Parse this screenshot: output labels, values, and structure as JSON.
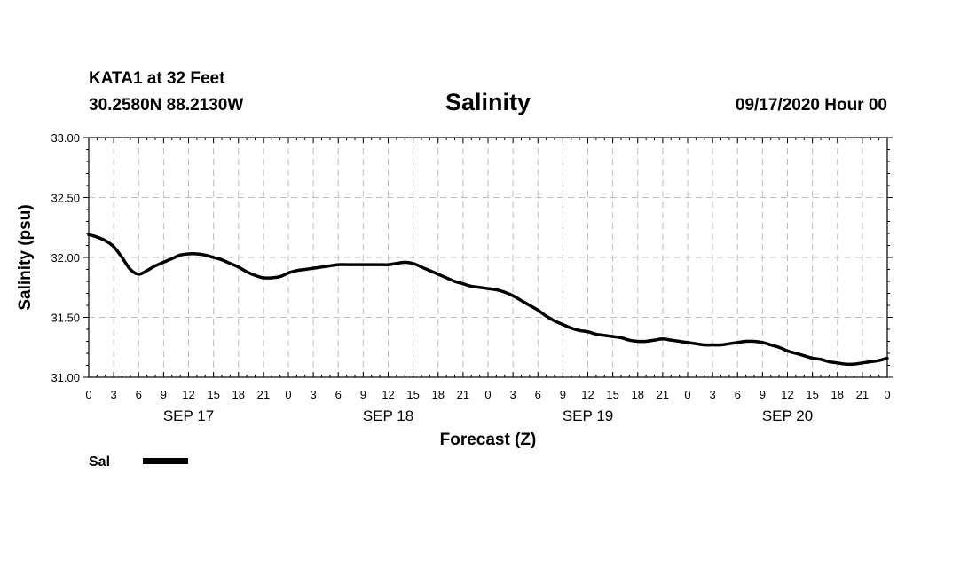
{
  "chart_data": {
    "type": "line",
    "title": "Salinity",
    "station": "KATA1 at 32 Feet",
    "location": "30.2580N 88.2130W",
    "run": "09/17/2020 Hour 00",
    "xlabel": "Forecast (Z)",
    "ylabel": "Salinity (psu)",
    "ylim": [
      31.0,
      33.0
    ],
    "xlim": [
      0,
      96
    ],
    "y_ticks": [
      "31.00",
      "31.50",
      "32.00",
      "32.50",
      "33.00"
    ],
    "x_ticks": [
      "0",
      "3",
      "6",
      "9",
      "12",
      "15",
      "18",
      "21",
      "0",
      "3",
      "6",
      "9",
      "12",
      "15",
      "18",
      "21",
      "0",
      "3",
      "6",
      "9",
      "12",
      "15",
      "18",
      "21",
      "0",
      "3",
      "6",
      "9",
      "12",
      "15",
      "18",
      "21",
      "0"
    ],
    "date_labels": [
      {
        "label": "SEP 17",
        "hour": 12
      },
      {
        "label": "SEP 18",
        "hour": 36
      },
      {
        "label": "SEP 19",
        "hour": 60
      },
      {
        "label": "SEP 20",
        "hour": 84
      }
    ],
    "grid": true,
    "legend": "bottom-left",
    "series": [
      {
        "name": "Sal",
        "x": [
          0,
          1,
          2,
          3,
          4,
          5,
          6,
          7,
          8,
          9,
          10,
          11,
          12,
          13,
          14,
          15,
          16,
          17,
          18,
          19,
          20,
          21,
          22,
          23,
          24,
          25,
          26,
          27,
          28,
          29,
          30,
          31,
          32,
          33,
          34,
          35,
          36,
          37,
          38,
          39,
          40,
          41,
          42,
          43,
          44,
          45,
          46,
          47,
          48,
          49,
          50,
          51,
          52,
          53,
          54,
          55,
          56,
          57,
          58,
          59,
          60,
          61,
          62,
          63,
          64,
          65,
          66,
          67,
          68,
          69,
          70,
          71,
          72,
          73,
          74,
          75,
          76,
          77,
          78,
          79,
          80,
          81,
          82,
          83,
          84,
          85,
          86,
          87,
          88,
          89,
          90,
          91,
          92,
          93,
          94,
          95,
          96
        ],
        "values": [
          32.19,
          32.17,
          32.14,
          32.09,
          32.0,
          31.9,
          31.86,
          31.89,
          31.93,
          31.96,
          31.99,
          32.02,
          32.03,
          32.03,
          32.02,
          32.0,
          31.98,
          31.95,
          31.92,
          31.88,
          31.85,
          31.83,
          31.83,
          31.84,
          31.87,
          31.89,
          31.9,
          31.91,
          31.92,
          31.93,
          31.94,
          31.94,
          31.94,
          31.94,
          31.94,
          31.94,
          31.94,
          31.95,
          31.96,
          31.95,
          31.92,
          31.89,
          31.86,
          31.83,
          31.8,
          31.78,
          31.76,
          31.75,
          31.74,
          31.73,
          31.71,
          31.68,
          31.64,
          31.6,
          31.56,
          31.51,
          31.47,
          31.44,
          31.41,
          31.39,
          31.38,
          31.36,
          31.35,
          31.34,
          31.33,
          31.31,
          31.3,
          31.3,
          31.31,
          31.32,
          31.31,
          31.3,
          31.29,
          31.28,
          31.27,
          31.27,
          31.27,
          31.28,
          31.29,
          31.3,
          31.3,
          31.29,
          31.27,
          31.25,
          31.22,
          31.2,
          31.18,
          31.16,
          31.15,
          31.13,
          31.12,
          31.11,
          31.11,
          31.12,
          31.13,
          31.14,
          31.16
        ]
      }
    ]
  }
}
